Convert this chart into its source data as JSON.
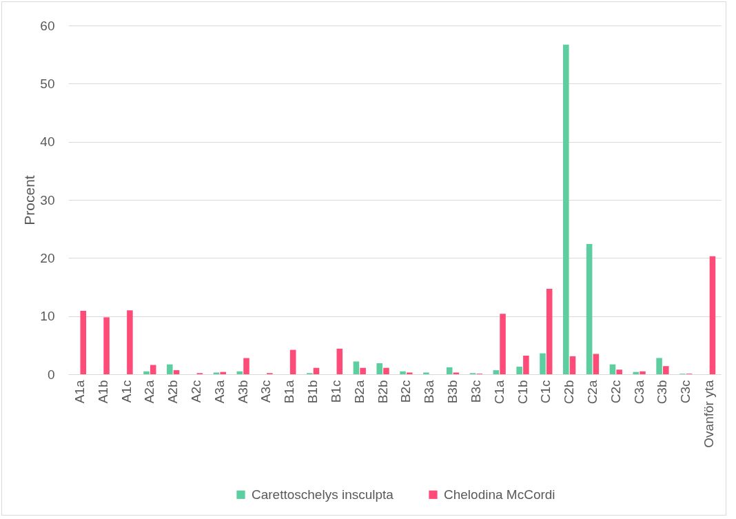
{
  "chart_data": {
    "type": "bar",
    "ylabel": "Procent",
    "categories": [
      "A1a",
      "A1b",
      "A1c",
      "A2a",
      "A2b",
      "A2c",
      "A3a",
      "A3b",
      "A3c",
      "B1a",
      "B1b",
      "B1c",
      "B2a",
      "B2b",
      "B2c",
      "B3a",
      "B3b",
      "B3c",
      "C1a",
      "C1b",
      "C1c",
      "C2b",
      "C2a",
      "C2c",
      "C3a",
      "C3b",
      "C3c",
      "Ovanför yta"
    ],
    "series": [
      {
        "name": "Carettoschelys insculpta",
        "color": "#5dcea0",
        "values": [
          0,
          0,
          0,
          0.5,
          1.7,
          0,
          0.3,
          0.5,
          0,
          0,
          0.2,
          0,
          2.2,
          1.9,
          0.5,
          0.3,
          1.2,
          0.2,
          0.7,
          1.3,
          3.6,
          56.7,
          22.4,
          1.7,
          0.4,
          2.8,
          0.1,
          0
        ]
      },
      {
        "name": "Chelodina McCordi",
        "color": "#ff4b78",
        "values": [
          10.9,
          9.8,
          11.0,
          1.6,
          0.7,
          0.2,
          0.4,
          2.8,
          0.2,
          4.2,
          1.1,
          4.4,
          1.1,
          1.1,
          0.3,
          0,
          0.3,
          0.1,
          10.4,
          3.2,
          14.7,
          3.1,
          3.5,
          0.8,
          0.5,
          1.4,
          0.1,
          20.3
        ]
      }
    ],
    "ylim": [
      0,
      60
    ],
    "yticks": [
      0,
      10,
      20,
      30,
      40,
      50,
      60
    ],
    "grid": "y",
    "legend": "bottom"
  }
}
